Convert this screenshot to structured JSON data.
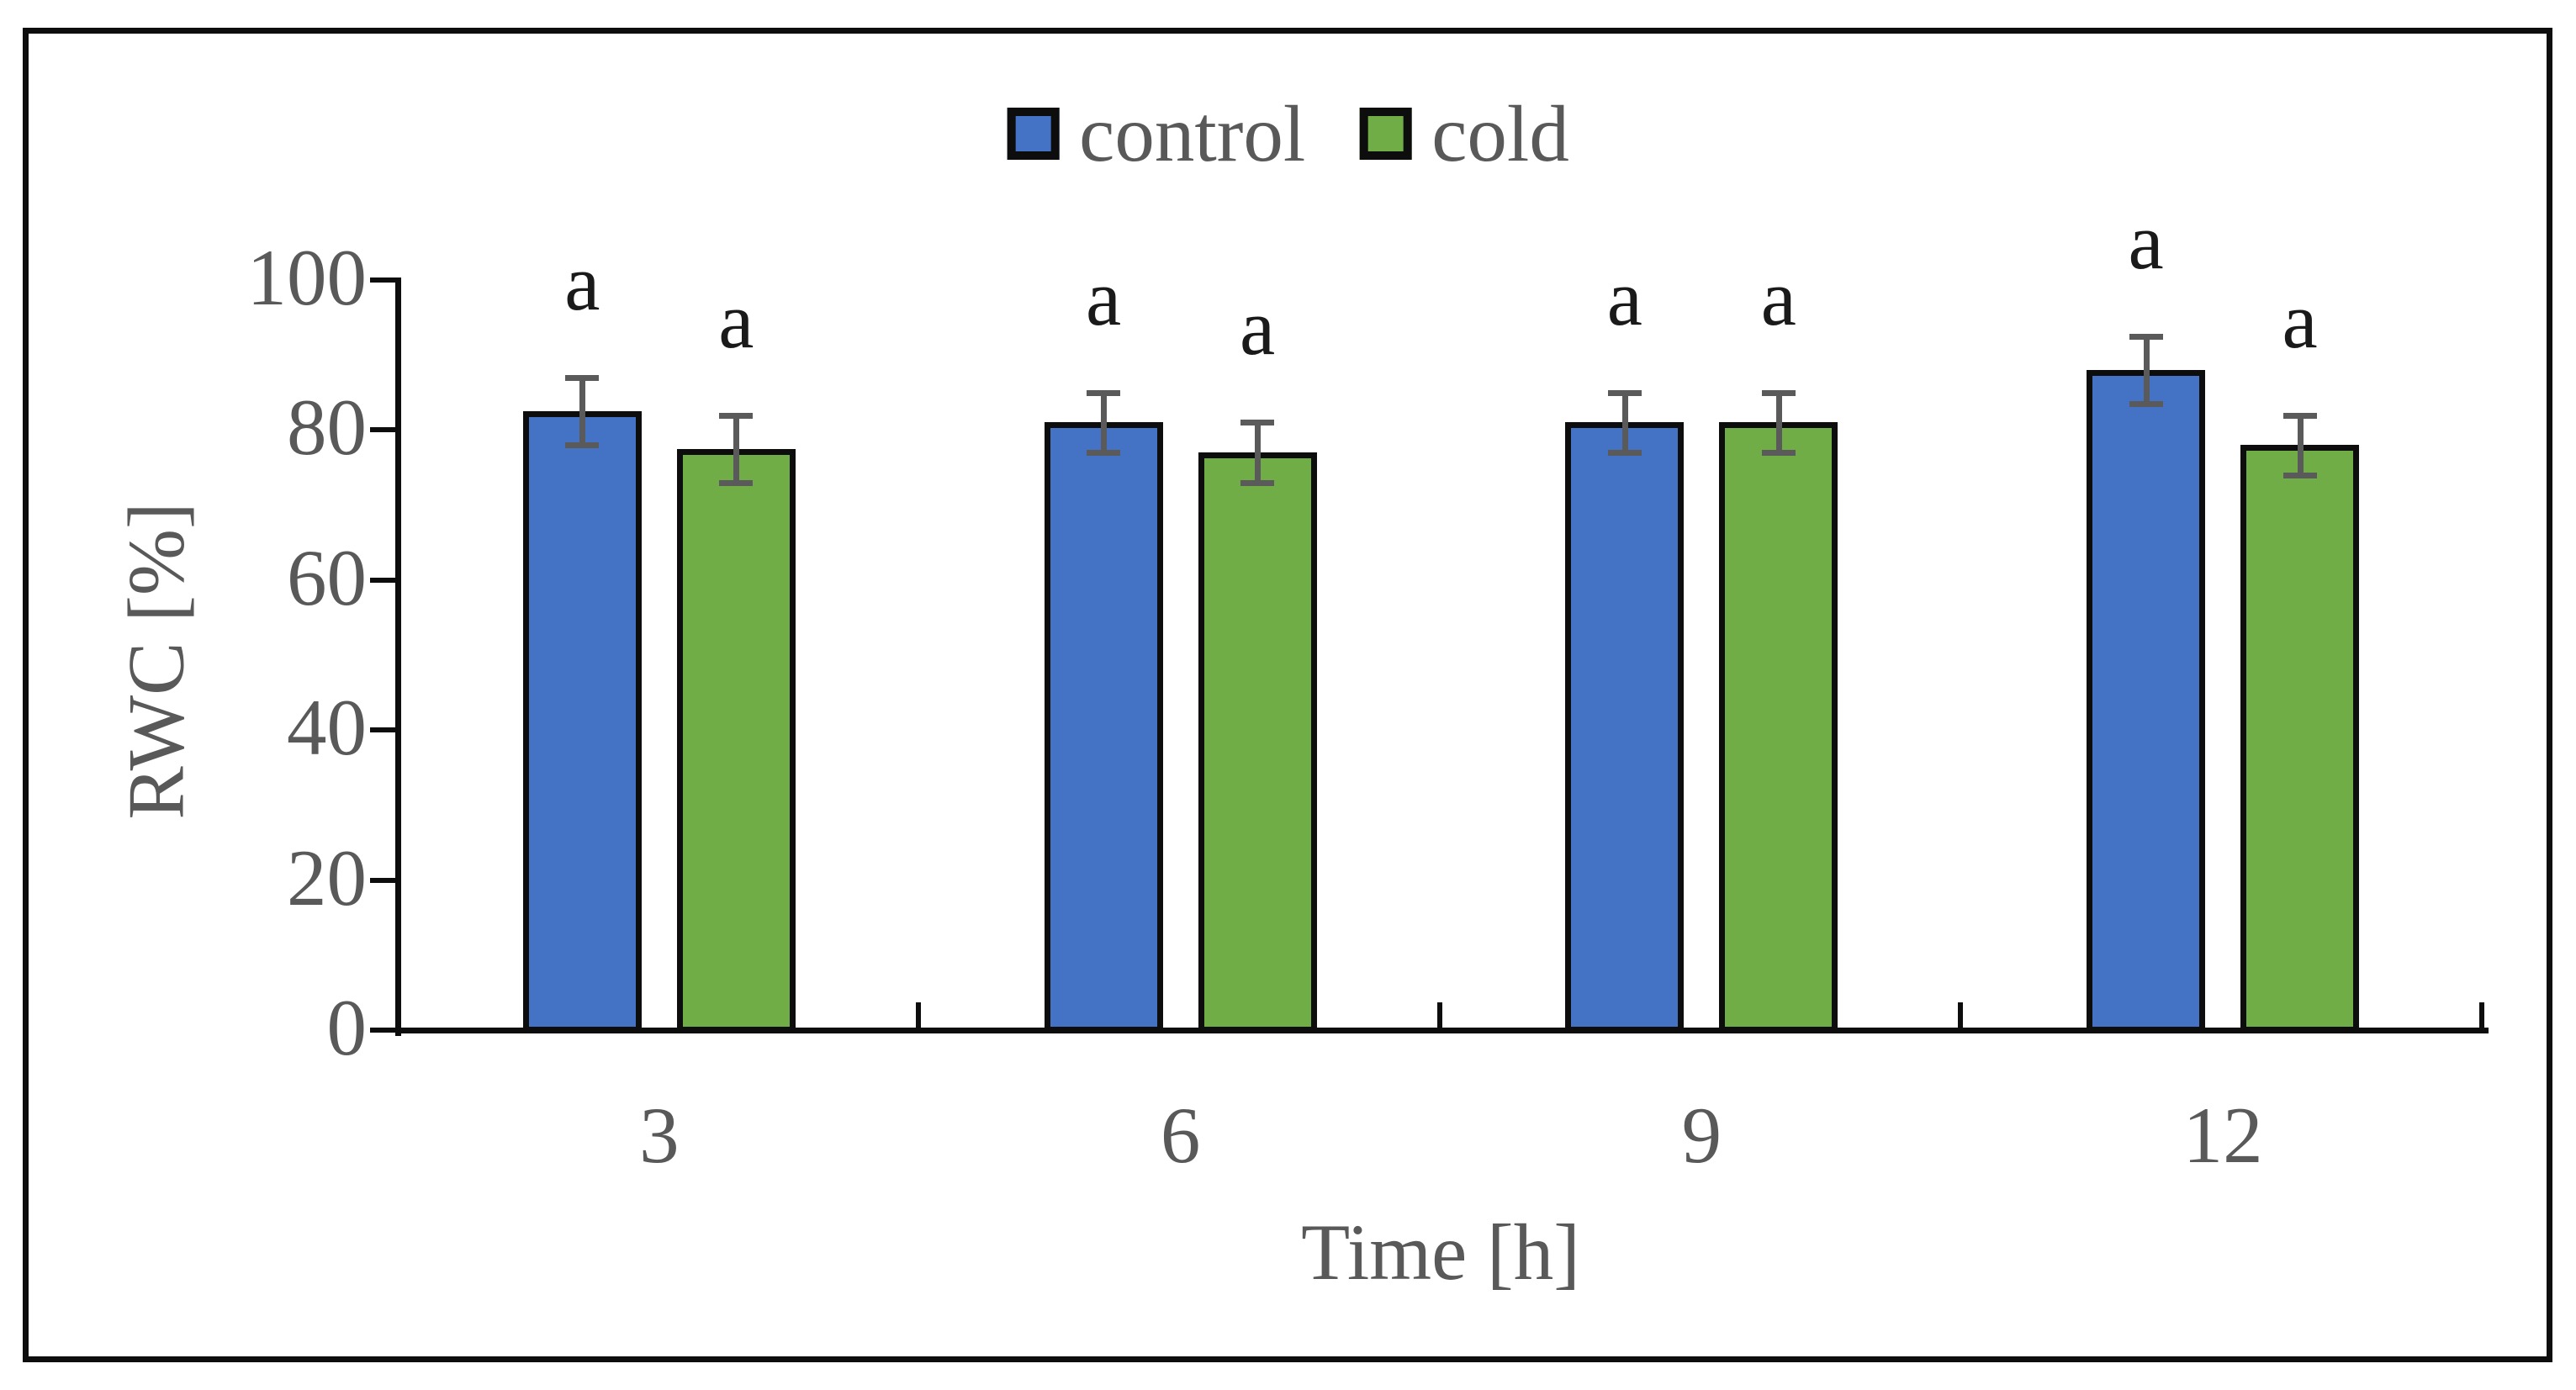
{
  "figure": {
    "background": "#ffffff",
    "border_color": "#0d0d0d"
  },
  "chart_data": {
    "type": "bar",
    "categories": [
      "3",
      "6",
      "9",
      "12"
    ],
    "series": [
      {
        "name": "control",
        "color": "#4472C4",
        "values": [
          82.5,
          81,
          81,
          88
        ],
        "errors": [
          4.5,
          4,
          4,
          4.5
        ],
        "sig_labels": [
          "a",
          "a",
          "a",
          "a"
        ]
      },
      {
        "name": "cold",
        "color": "#70AD47",
        "values": [
          77.5,
          77,
          81,
          78
        ],
        "errors": [
          4.5,
          4,
          4,
          4
        ],
        "sig_labels": [
          "a",
          "a",
          "a",
          "a"
        ]
      }
    ],
    "xlabel": "Time [h]",
    "ylabel": "RWC [%]",
    "ylim": [
      0,
      100
    ],
    "y_ticks": [
      "0",
      "20",
      "40",
      "60",
      "80",
      "100"
    ],
    "grid": false,
    "legend_position": "top-center",
    "bar_border_color": "#0d0d0d",
    "error_bar_color": "#5a5a5a",
    "axis_color": "#0d0d0d",
    "tick_text_color": "#595959",
    "sig_label_color": "#1a1a1a"
  }
}
